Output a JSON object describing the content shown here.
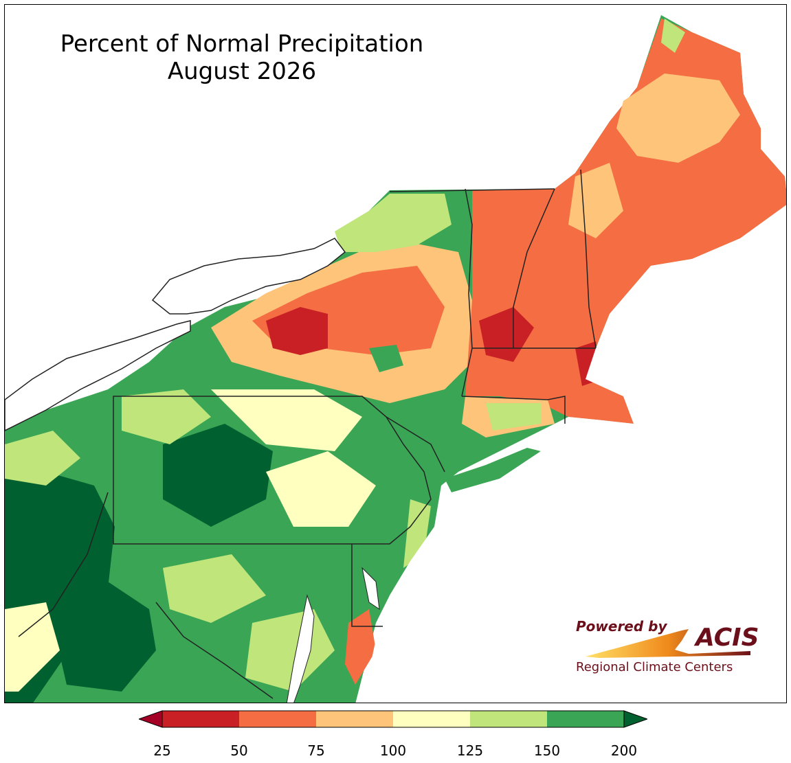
{
  "map": {
    "title_line1": "Percent of Normal Precipitation",
    "title_line2": "August 2026",
    "region": "Northeastern United States"
  },
  "legend": {
    "ticks": [
      "25",
      "50",
      "75",
      "100",
      "125",
      "150",
      "200"
    ],
    "bins": [
      {
        "range": "<25",
        "color": "#a50026"
      },
      {
        "range": "25-50",
        "color": "#c92026"
      },
      {
        "range": "50-75",
        "color": "#f46d43"
      },
      {
        "range": "75-100",
        "color": "#fdc47a"
      },
      {
        "range": "100-125",
        "color": "#ffffbf"
      },
      {
        "range": "125-150",
        "color": "#bfe57b"
      },
      {
        "range": "150-200",
        "color": "#3aa655"
      },
      {
        "range": ">200",
        "color": "#00602f"
      }
    ]
  },
  "logo": {
    "powered_by": "Powered by",
    "name": "ACIS",
    "subtitle": "Regional Climate Centers"
  }
}
